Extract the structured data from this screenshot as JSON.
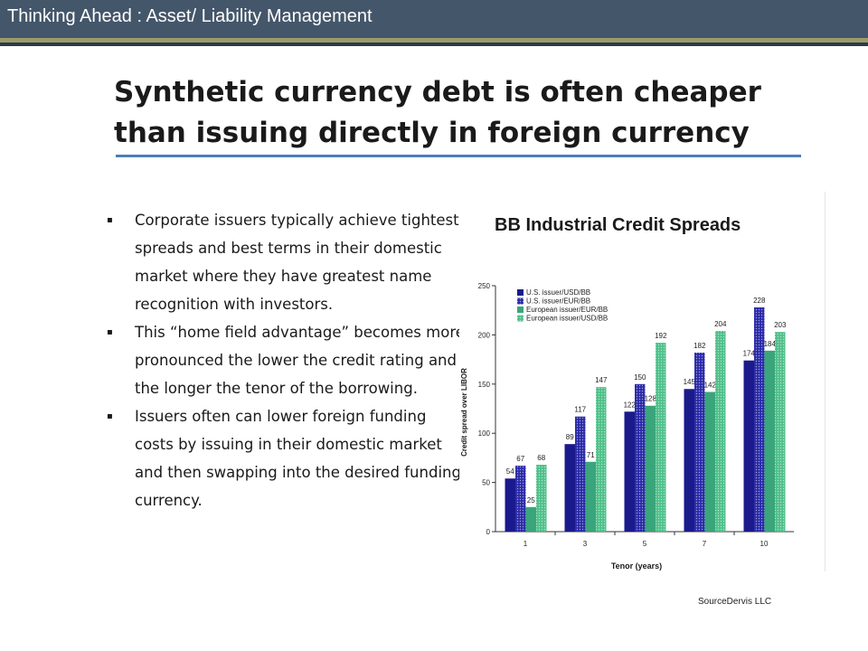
{
  "header": {
    "title": "Thinking Ahead : Asset/ Liability Management"
  },
  "slide": {
    "title": "Synthetic currency debt is often cheaper than issuing directly in foreign currency",
    "bullets": [
      "Corporate issuers typically achieve tightest spreads and best terms in their domestic market where they have greatest name recognition with investors.",
      "This “home field advantage” becomes more pronounced the lower the credit rating and the longer the tenor of the borrowing.",
      "Issuers often can lower foreign funding costs by issuing in their domestic market and then swapping into the desired funding currency."
    ],
    "bullet_glyph": "▪",
    "source": "SourceDervis LLC"
  },
  "chart_data": {
    "type": "bar",
    "title": "BB Industrial Credit Spreads",
    "xlabel": "Tenor (years)",
    "ylabel": "Credit spread over LIBOR",
    "categories": [
      "1",
      "3",
      "5",
      "7",
      "10"
    ],
    "ylim": [
      0,
      250
    ],
    "yticks": [
      0,
      50,
      100,
      150,
      200,
      250
    ],
    "grid": false,
    "legend_position": "top-left",
    "series": [
      {
        "name": "U.S. issuer/USD/BB",
        "values": [
          54,
          89,
          122,
          145,
          174
        ],
        "color": "#1a1a8c",
        "pattern": "solid"
      },
      {
        "name": "U.S. issuer/EUR/BB",
        "values": [
          67,
          117,
          150,
          182,
          228
        ],
        "color": "#2a2aa8",
        "pattern": "dotted"
      },
      {
        "name": "European issuer/EUR/BB",
        "values": [
          25,
          71,
          128,
          142,
          184
        ],
        "color": "#3aa57a",
        "pattern": "solid"
      },
      {
        "name": "European issuer/USD/BB",
        "values": [
          68,
          147,
          192,
          204,
          203
        ],
        "color": "#4fc08a",
        "pattern": "dotted"
      }
    ]
  }
}
